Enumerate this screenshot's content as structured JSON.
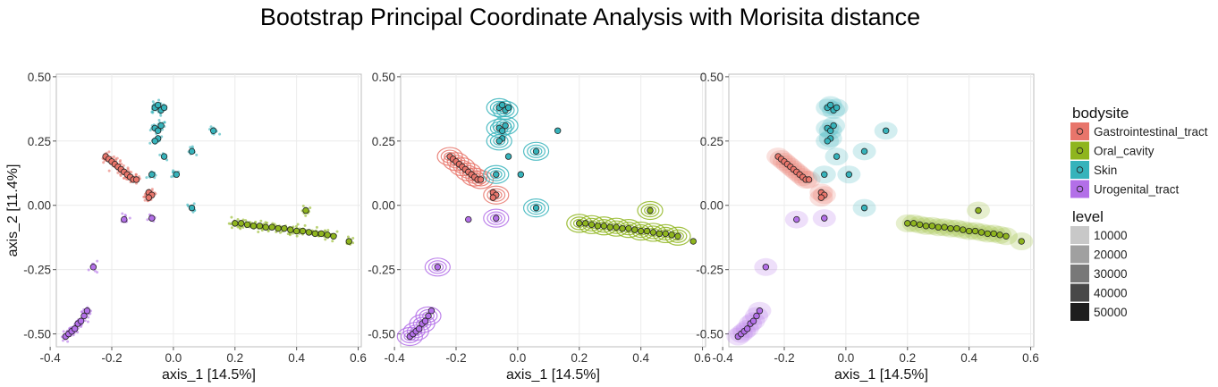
{
  "title": "Bootstrap Principal Coordinate Analysis with Morisita distance",
  "chart_data": {
    "type": "scatter",
    "xlabel": "axis_1 [14.5%]",
    "ylabel": "axis_2 [11.4%]",
    "xlim": [
      -0.38,
      0.61
    ],
    "ylim": [
      -0.55,
      0.51
    ],
    "x_ticks": [
      -0.4,
      -0.2,
      0.0,
      0.2,
      0.4,
      0.6
    ],
    "x_tick_labels": [
      "-0.4",
      "-0.2",
      "0.0",
      "0.2",
      "0.4",
      "0.6"
    ],
    "y_ticks": [
      0.5,
      0.25,
      0.0,
      -0.25,
      -0.5
    ],
    "y_tick_labels": [
      "0.50",
      "0.25",
      "0.00",
      "-0.25",
      "-0.50"
    ],
    "grid": true,
    "panels": [
      "bootstrap points",
      "density contours",
      "density raster"
    ],
    "series": [
      {
        "name": "Gastrointestinal_tract",
        "color": "#E8756B",
        "x": [
          -0.22,
          -0.21,
          -0.2,
          -0.19,
          -0.18,
          -0.17,
          -0.16,
          -0.15,
          -0.14,
          -0.13,
          -0.12,
          -0.08,
          -0.07,
          -0.08
        ],
        "y": [
          0.19,
          0.18,
          0.17,
          0.16,
          0.15,
          0.14,
          0.13,
          0.12,
          0.11,
          0.1,
          0.1,
          0.05,
          0.04,
          0.03
        ]
      },
      {
        "name": "Oral_cavity",
        "color": "#8FB51E",
        "x": [
          0.2,
          0.22,
          0.24,
          0.26,
          0.28,
          0.3,
          0.32,
          0.34,
          0.36,
          0.38,
          0.4,
          0.42,
          0.44,
          0.46,
          0.48,
          0.5,
          0.52,
          0.57,
          0.43
        ],
        "y": [
          -0.07,
          -0.07,
          -0.075,
          -0.08,
          -0.08,
          -0.085,
          -0.085,
          -0.09,
          -0.09,
          -0.095,
          -0.1,
          -0.1,
          -0.105,
          -0.11,
          -0.11,
          -0.115,
          -0.12,
          -0.14,
          -0.02
        ]
      },
      {
        "name": "Skin",
        "color": "#36B3BB",
        "x": [
          -0.06,
          -0.05,
          -0.04,
          -0.03,
          -0.06,
          -0.05,
          -0.04,
          -0.05,
          -0.06,
          0.01,
          0.06,
          0.13,
          -0.07,
          -0.03,
          0.06
        ],
        "y": [
          0.38,
          0.39,
          0.37,
          0.38,
          0.3,
          0.29,
          0.31,
          0.26,
          0.25,
          0.12,
          0.21,
          0.29,
          0.12,
          0.19,
          -0.01
        ]
      },
      {
        "name": "Urogenital_tract",
        "color": "#B36FE8",
        "x": [
          -0.35,
          -0.34,
          -0.33,
          -0.32,
          -0.31,
          -0.3,
          -0.29,
          -0.28,
          -0.26,
          -0.16,
          -0.07
        ],
        "y": [
          -0.51,
          -0.5,
          -0.49,
          -0.48,
          -0.46,
          -0.45,
          -0.43,
          -0.41,
          -0.24,
          -0.055,
          -0.05
        ]
      }
    ],
    "legend": {
      "title": "bodysite",
      "items": [
        "Gastrointestinal_tract",
        "Oral_cavity",
        "Skin",
        "Urogenital_tract"
      ],
      "level_title": "level",
      "level_items": [
        "10000",
        "20000",
        "30000",
        "40000",
        "50000"
      ],
      "level_colors": [
        "#c8c8c8",
        "#a0a0a0",
        "#787878",
        "#484848",
        "#1e1e1e"
      ],
      "position": "right"
    }
  }
}
